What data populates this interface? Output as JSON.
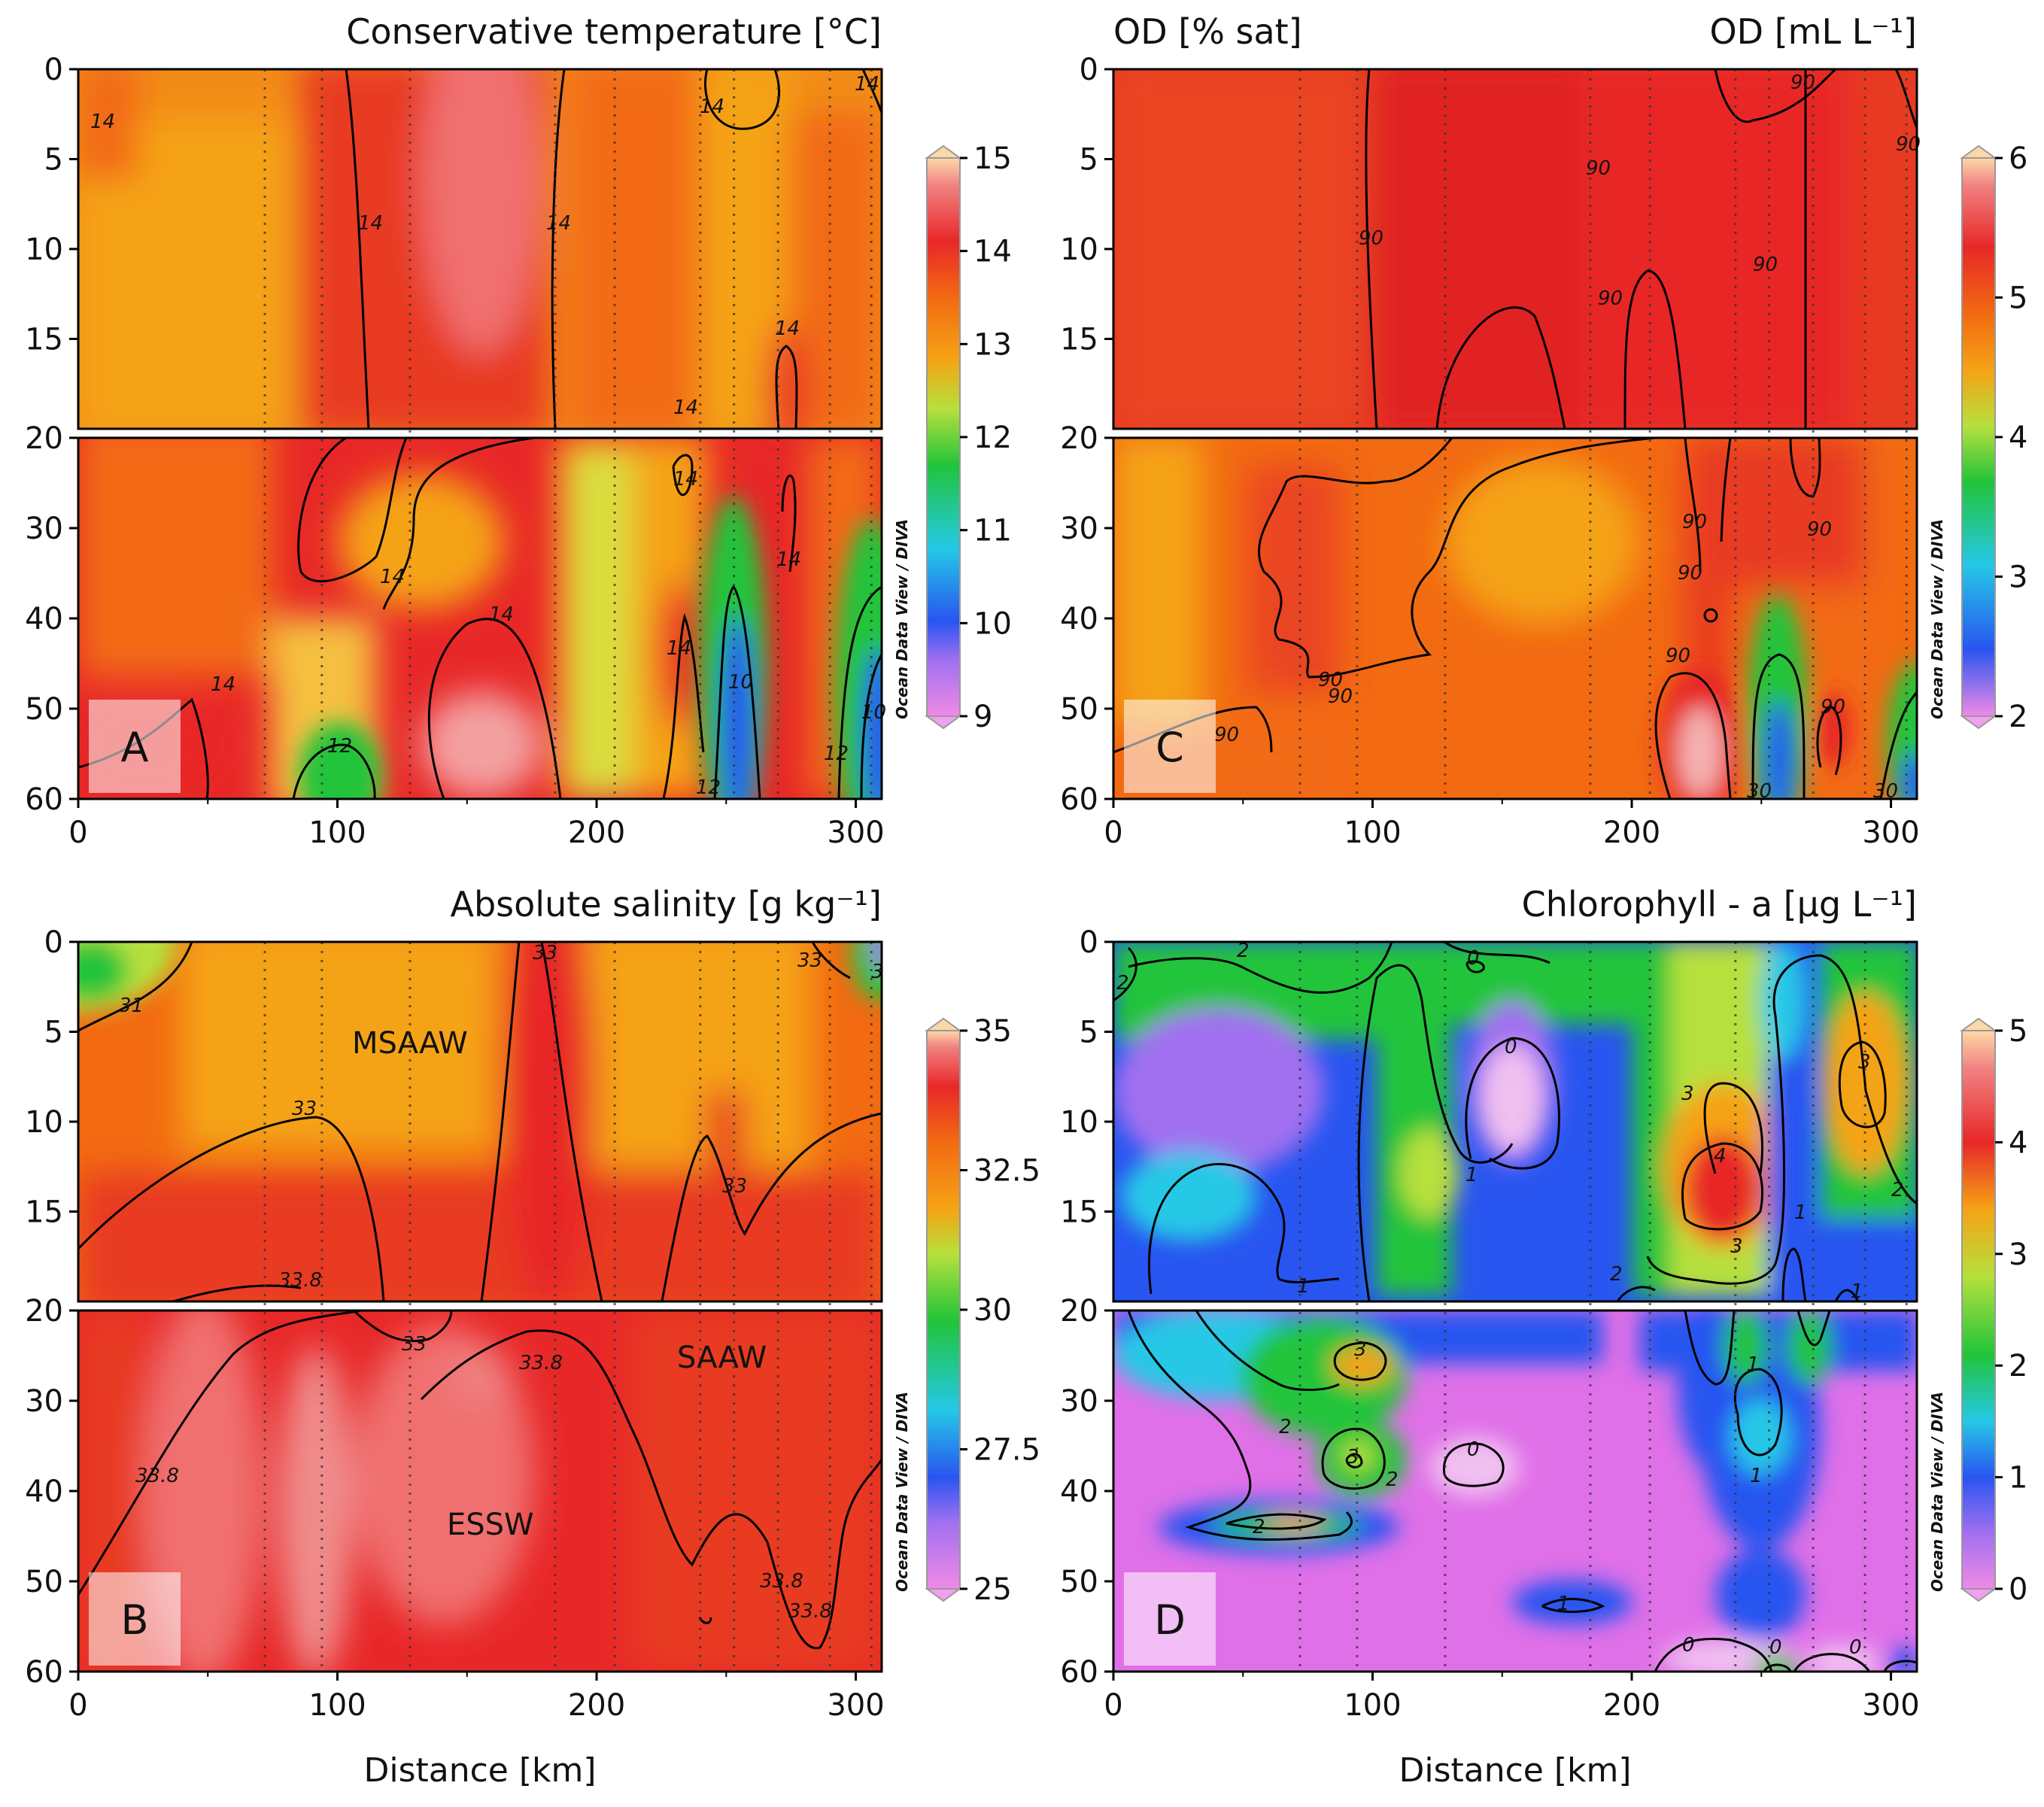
{
  "x_axis_label": "Distance [km]",
  "watermark": "Ocean Data View / DIVA",
  "panels": [
    {
      "id": "A",
      "title": "Conservative temperature [°C]",
      "title_right": "",
      "colorbar": {
        "min": 9,
        "max": 15,
        "ticks": [
          "9",
          "10",
          "11",
          "12",
          "13",
          "14",
          "15"
        ]
      },
      "contour_labels": [
        "14",
        "14",
        "14",
        "14",
        "14",
        "14",
        "14",
        "14",
        "14",
        "14",
        "14",
        "14",
        "14",
        "12",
        "12",
        "12",
        "10",
        "10"
      ],
      "water_masses": []
    },
    {
      "id": "B",
      "title": "Absolute salinity [g kg⁻¹]",
      "title_right": "",
      "colorbar": {
        "min": 25,
        "max": 35,
        "ticks": [
          "25",
          "27.5",
          "30",
          "32.5",
          "35"
        ]
      },
      "contour_labels": [
        "31",
        "33",
        "33",
        "33",
        "33",
        "33",
        "33.8",
        "33.8",
        "33.8",
        "33.8",
        "33.8",
        "3"
      ],
      "water_masses": [
        "MSAAW",
        "SAAW",
        "ESSW"
      ]
    },
    {
      "id": "C",
      "title": "OD [% sat]",
      "title_right": "OD [mL L⁻¹]",
      "colorbar": {
        "min": 2,
        "max": 6,
        "ticks": [
          "2",
          "3",
          "4",
          "5",
          "6"
        ]
      },
      "contour_labels": [
        "90",
        "90",
        "90",
        "90",
        "90",
        "90",
        "90",
        "90",
        "90",
        "90",
        "90",
        "90",
        "90",
        "90",
        "30",
        "30"
      ],
      "water_masses": []
    },
    {
      "id": "D",
      "title": "Chlorophyll - a [µg L⁻¹]",
      "title_right": "",
      "colorbar": {
        "min": 0,
        "max": 5,
        "ticks": [
          "0",
          "1",
          "2",
          "3",
          "4",
          "5"
        ]
      },
      "contour_labels": [
        "2",
        "2",
        "0",
        "0",
        "1",
        "1",
        "3",
        "4",
        "3",
        "2",
        "2",
        "1",
        "1",
        "3",
        "2",
        "3",
        "2",
        "3",
        "2",
        "0",
        "1",
        "1",
        "1",
        "0",
        "0",
        "0"
      ],
      "water_masses": []
    }
  ],
  "chart_data": [
    {
      "type": "heatmap",
      "panel": "A",
      "title": "Conservative temperature [°C]",
      "xlabel": "",
      "ylabel": "",
      "xlim": [
        0,
        310
      ],
      "ylim": [
        60,
        0
      ],
      "y_break": 20,
      "x_ticks": [
        0,
        100,
        200,
        300
      ],
      "y_ticks": [
        0,
        5,
        10,
        15,
        20,
        30,
        40,
        50,
        60
      ],
      "colorbar": {
        "min": 9,
        "max": 15
      },
      "stations_km": [
        72,
        94,
        128,
        184,
        207,
        240,
        253,
        270,
        290,
        306
      ],
      "approx_field": "≈13–14.5 °C in upper 20 m, warmer cores (~14.8) near 150 km; cold (~10 °C) intrusions at depth near 253 km and 305 km"
    },
    {
      "type": "heatmap",
      "panel": "B",
      "title": "Absolute salinity [g kg⁻¹]",
      "xlabel": "Distance [km]",
      "ylabel": "",
      "xlim": [
        0,
        310
      ],
      "ylim": [
        60,
        0
      ],
      "y_break": 20,
      "x_ticks": [
        0,
        100,
        200,
        300
      ],
      "y_ticks": [
        0,
        5,
        10,
        15,
        20,
        30,
        40,
        50,
        60
      ],
      "colorbar": {
        "min": 25,
        "max": 35
      },
      "stations_km": [
        72,
        94,
        128,
        184,
        207,
        240,
        253,
        270,
        290,
        306
      ],
      "approx_field": "≈31–33 g/kg near surface (MSAAW), >33.8 g/kg at depth (ESSW); low salinity (~29) at surface edges"
    },
    {
      "type": "heatmap",
      "panel": "C",
      "title": "OD [% sat]",
      "xlabel": "",
      "ylabel": "",
      "xlim": [
        0,
        310
      ],
      "ylim": [
        60,
        0
      ],
      "y_break": 20,
      "x_ticks": [
        0,
        100,
        200,
        300
      ],
      "y_ticks": [
        0,
        5,
        10,
        15,
        20,
        30,
        40,
        50,
        60
      ],
      "colorbar": {
        "min": 2,
        "max": 6
      },
      "stations_km": [
        72,
        94,
        128,
        184,
        207,
        240,
        253,
        270,
        290,
        306
      ],
      "approx_field": "≈5–5.5 mL/L near surface (90 % sat contour), ≈4.5 at 20–60 m; low (~2) at depth near 253 km and 305 km"
    },
    {
      "type": "heatmap",
      "panel": "D",
      "title": "Chlorophyll - a [µg L⁻¹]",
      "xlabel": "Distance [km]",
      "ylabel": "",
      "xlim": [
        0,
        310
      ],
      "ylim": [
        60,
        0
      ],
      "y_break": 20,
      "x_ticks": [
        0,
        100,
        200,
        300
      ],
      "y_ticks": [
        0,
        5,
        10,
        15,
        20,
        30,
        40,
        50,
        60
      ],
      "colorbar": {
        "min": 0,
        "max": 5
      },
      "stations_km": [
        72,
        94,
        128,
        184,
        207,
        240,
        253,
        270,
        290,
        306
      ],
      "approx_field": "max ≈4.3 µg/L near 210 km at 15 m; ≈3 near 280 km; mostly 0–1 below 30 m"
    }
  ]
}
